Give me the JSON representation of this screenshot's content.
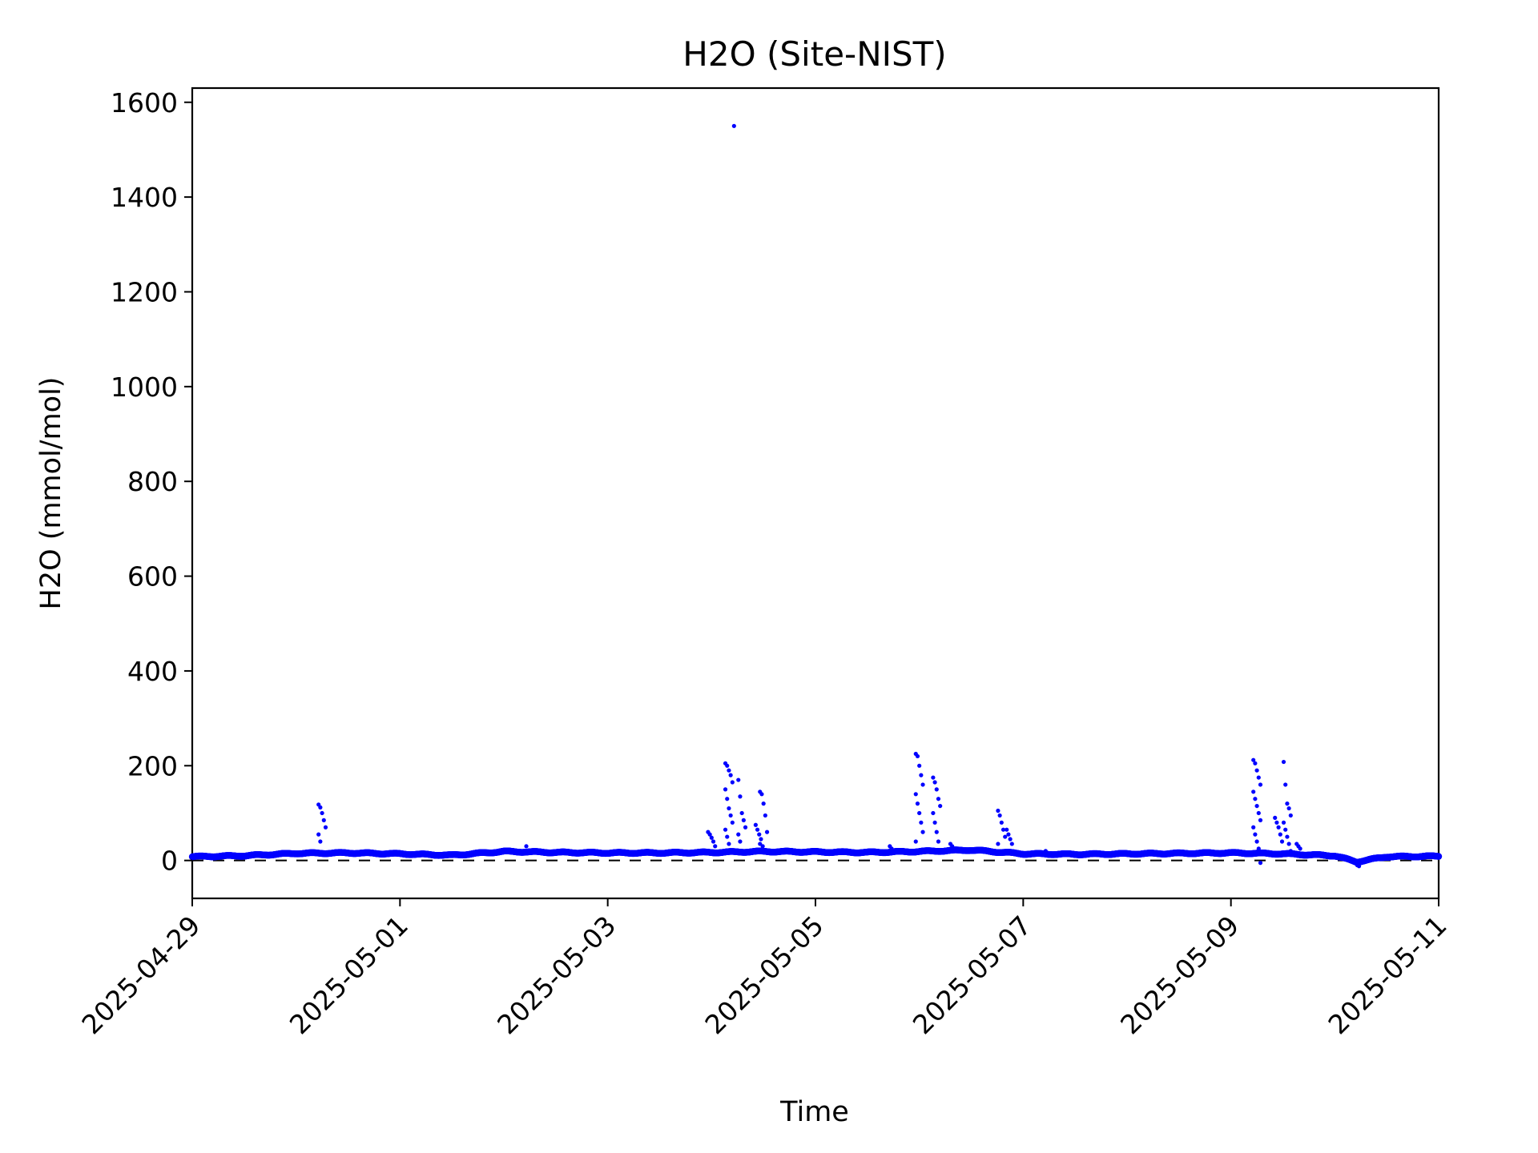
{
  "chart_data": {
    "type": "scatter",
    "title": "H2O (Site-NIST)",
    "xlabel": "Time",
    "ylabel": "H2O (mmol/mol)",
    "x_type": "date",
    "xlim": [
      "2025-04-29",
      "2025-05-11"
    ],
    "ylim": [
      -80,
      1630
    ],
    "x_ticks": [
      "2025-04-29",
      "2025-05-01",
      "2025-05-03",
      "2025-05-05",
      "2025-05-07",
      "2025-05-09",
      "2025-05-11"
    ],
    "y_ticks": [
      0,
      200,
      400,
      600,
      800,
      1000,
      1200,
      1400,
      1600
    ],
    "grid": false,
    "legend": "none",
    "colors": {
      "points": "#0000ff",
      "reference_line": "#000000"
    },
    "reference_line": {
      "y": 0,
      "style": "dashed"
    },
    "series": [
      {
        "baseline": {
          "x": [
            "2025-04-29T00:00",
            "2025-04-29T12:00",
            "2025-04-30T00:00",
            "2025-04-30T12:00",
            "2025-05-01T00:00",
            "2025-05-01T12:00",
            "2025-05-02T00:00",
            "2025-05-02T12:00",
            "2025-05-03T00:00",
            "2025-05-03T12:00",
            "2025-05-04T00:00",
            "2025-05-04T12:00",
            "2025-05-05T00:00",
            "2025-05-05T12:00",
            "2025-05-06T00:00",
            "2025-05-06T12:00",
            "2025-05-07T00:00",
            "2025-05-07T12:00",
            "2025-05-08T00:00",
            "2025-05-08T12:00",
            "2025-05-09T00:00",
            "2025-05-09T12:00",
            "2025-05-10T00:00",
            "2025-05-10T05:00",
            "2025-05-10T12:00",
            "2025-05-11T00:00"
          ],
          "y": [
            8,
            10,
            15,
            16,
            14,
            11,
            19,
            17,
            16,
            16,
            17,
            19,
            18,
            17,
            19,
            22,
            14,
            13,
            14,
            15,
            16,
            14,
            10,
            -3,
            8,
            9
          ]
        },
        "spikes": [
          {
            "x": "2025-04-30T06:00",
            "y": [
              118,
              112,
              100,
              85,
              70,
              55,
              40
            ]
          },
          {
            "x": "2025-05-02T06:00",
            "y": [
              30
            ]
          },
          {
            "x": "2025-05-04T00:00",
            "y": [
              60,
              55,
              48,
              40,
              30
            ]
          },
          {
            "x": "2025-05-04T04:00",
            "y": [
              205,
              200,
              190,
              180,
              165,
              150,
              130,
              110,
              95,
              80,
              65,
              50,
              35,
              20
            ]
          },
          {
            "x": "2025-05-04T06:00",
            "y": [
              1550
            ]
          },
          {
            "x": "2025-05-04T07:00",
            "y": [
              170,
              135,
              100,
              85,
              70,
              55,
              40
            ]
          },
          {
            "x": "2025-05-04T11:00",
            "y": [
              75,
              65,
              55,
              45,
              30
            ]
          },
          {
            "x": "2025-05-04T12:00",
            "y": [
              145,
              140,
              120,
              95,
              60,
              35
            ]
          },
          {
            "x": "2025-05-05T18:00",
            "y": [
              30,
              25
            ]
          },
          {
            "x": "2025-05-06T00:00",
            "y": [
              225,
              220,
              200,
              180,
              160,
              140,
              120,
              100,
              80,
              60,
              40,
              20
            ]
          },
          {
            "x": "2025-05-06T04:00",
            "y": [
              175,
              165,
              150,
              130,
              115,
              100,
              80,
              60,
              40
            ]
          },
          {
            "x": "2025-05-06T08:00",
            "y": [
              35,
              30
            ]
          },
          {
            "x": "2025-05-06T19:00",
            "y": [
              105,
              95,
              80,
              65,
              50,
              35
            ]
          },
          {
            "x": "2025-05-06T21:00",
            "y": [
              65,
              55,
              45,
              35
            ]
          },
          {
            "x": "2025-05-07T06:00",
            "y": [
              20
            ]
          },
          {
            "x": "2025-05-09T06:00",
            "y": [
              212,
              205,
              190,
              175,
              160,
              145,
              130,
              115,
              100,
              85,
              70,
              55,
              40,
              25,
              -5
            ]
          },
          {
            "x": "2025-05-09T11:00",
            "y": [
              90,
              80,
              70,
              55,
              40
            ]
          },
          {
            "x": "2025-05-09T13:00",
            "y": [
              208,
              160,
              120,
              110,
              95,
              80,
              65,
              50,
              35,
              20
            ]
          },
          {
            "x": "2025-05-09T16:00",
            "y": [
              35,
              30,
              25
            ]
          },
          {
            "x": "2025-05-10T06:00",
            "y": [
              -10,
              -12
            ]
          }
        ]
      }
    ]
  }
}
